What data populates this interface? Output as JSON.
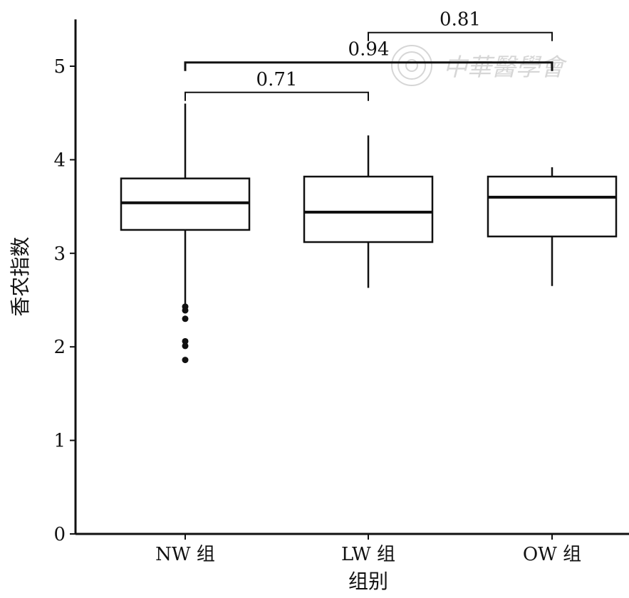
{
  "chart_data": {
    "type": "box",
    "xlabel": "组别",
    "ylabel": "香农指数",
    "ylim": [
      0,
      5.5
    ],
    "yticks": [
      "0",
      "1",
      "2",
      "3",
      "4",
      "5"
    ],
    "categories": [
      "NW 组",
      "LW 组",
      "OW 组"
    ],
    "boxes": [
      {
        "name": "NW 组",
        "whisker_low": 2.45,
        "q1": 3.25,
        "median": 3.54,
        "q3": 3.8,
        "whisker_high": 4.6,
        "outliers": [
          2.43,
          2.39,
          2.3,
          2.06,
          2.01,
          1.86
        ]
      },
      {
        "name": "LW 组",
        "whisker_low": 2.63,
        "q1": 3.12,
        "median": 3.44,
        "q3": 3.82,
        "whisker_high": 4.26,
        "outliers": []
      },
      {
        "name": "OW 组",
        "whisker_low": 2.65,
        "q1": 3.18,
        "median": 3.6,
        "q3": 3.82,
        "whisker_high": 3.92,
        "outliers": []
      }
    ],
    "comparisons": [
      {
        "from": 0,
        "to": 1,
        "label": "0.71",
        "y": 4.72
      },
      {
        "from": 0,
        "to": 2,
        "label": "0.94",
        "y": 5.04
      },
      {
        "from": 1,
        "to": 2,
        "label": "0.81",
        "y": 5.36
      }
    ]
  },
  "watermark": {
    "text": "中華醫學會",
    "icon": "seal-icon"
  }
}
